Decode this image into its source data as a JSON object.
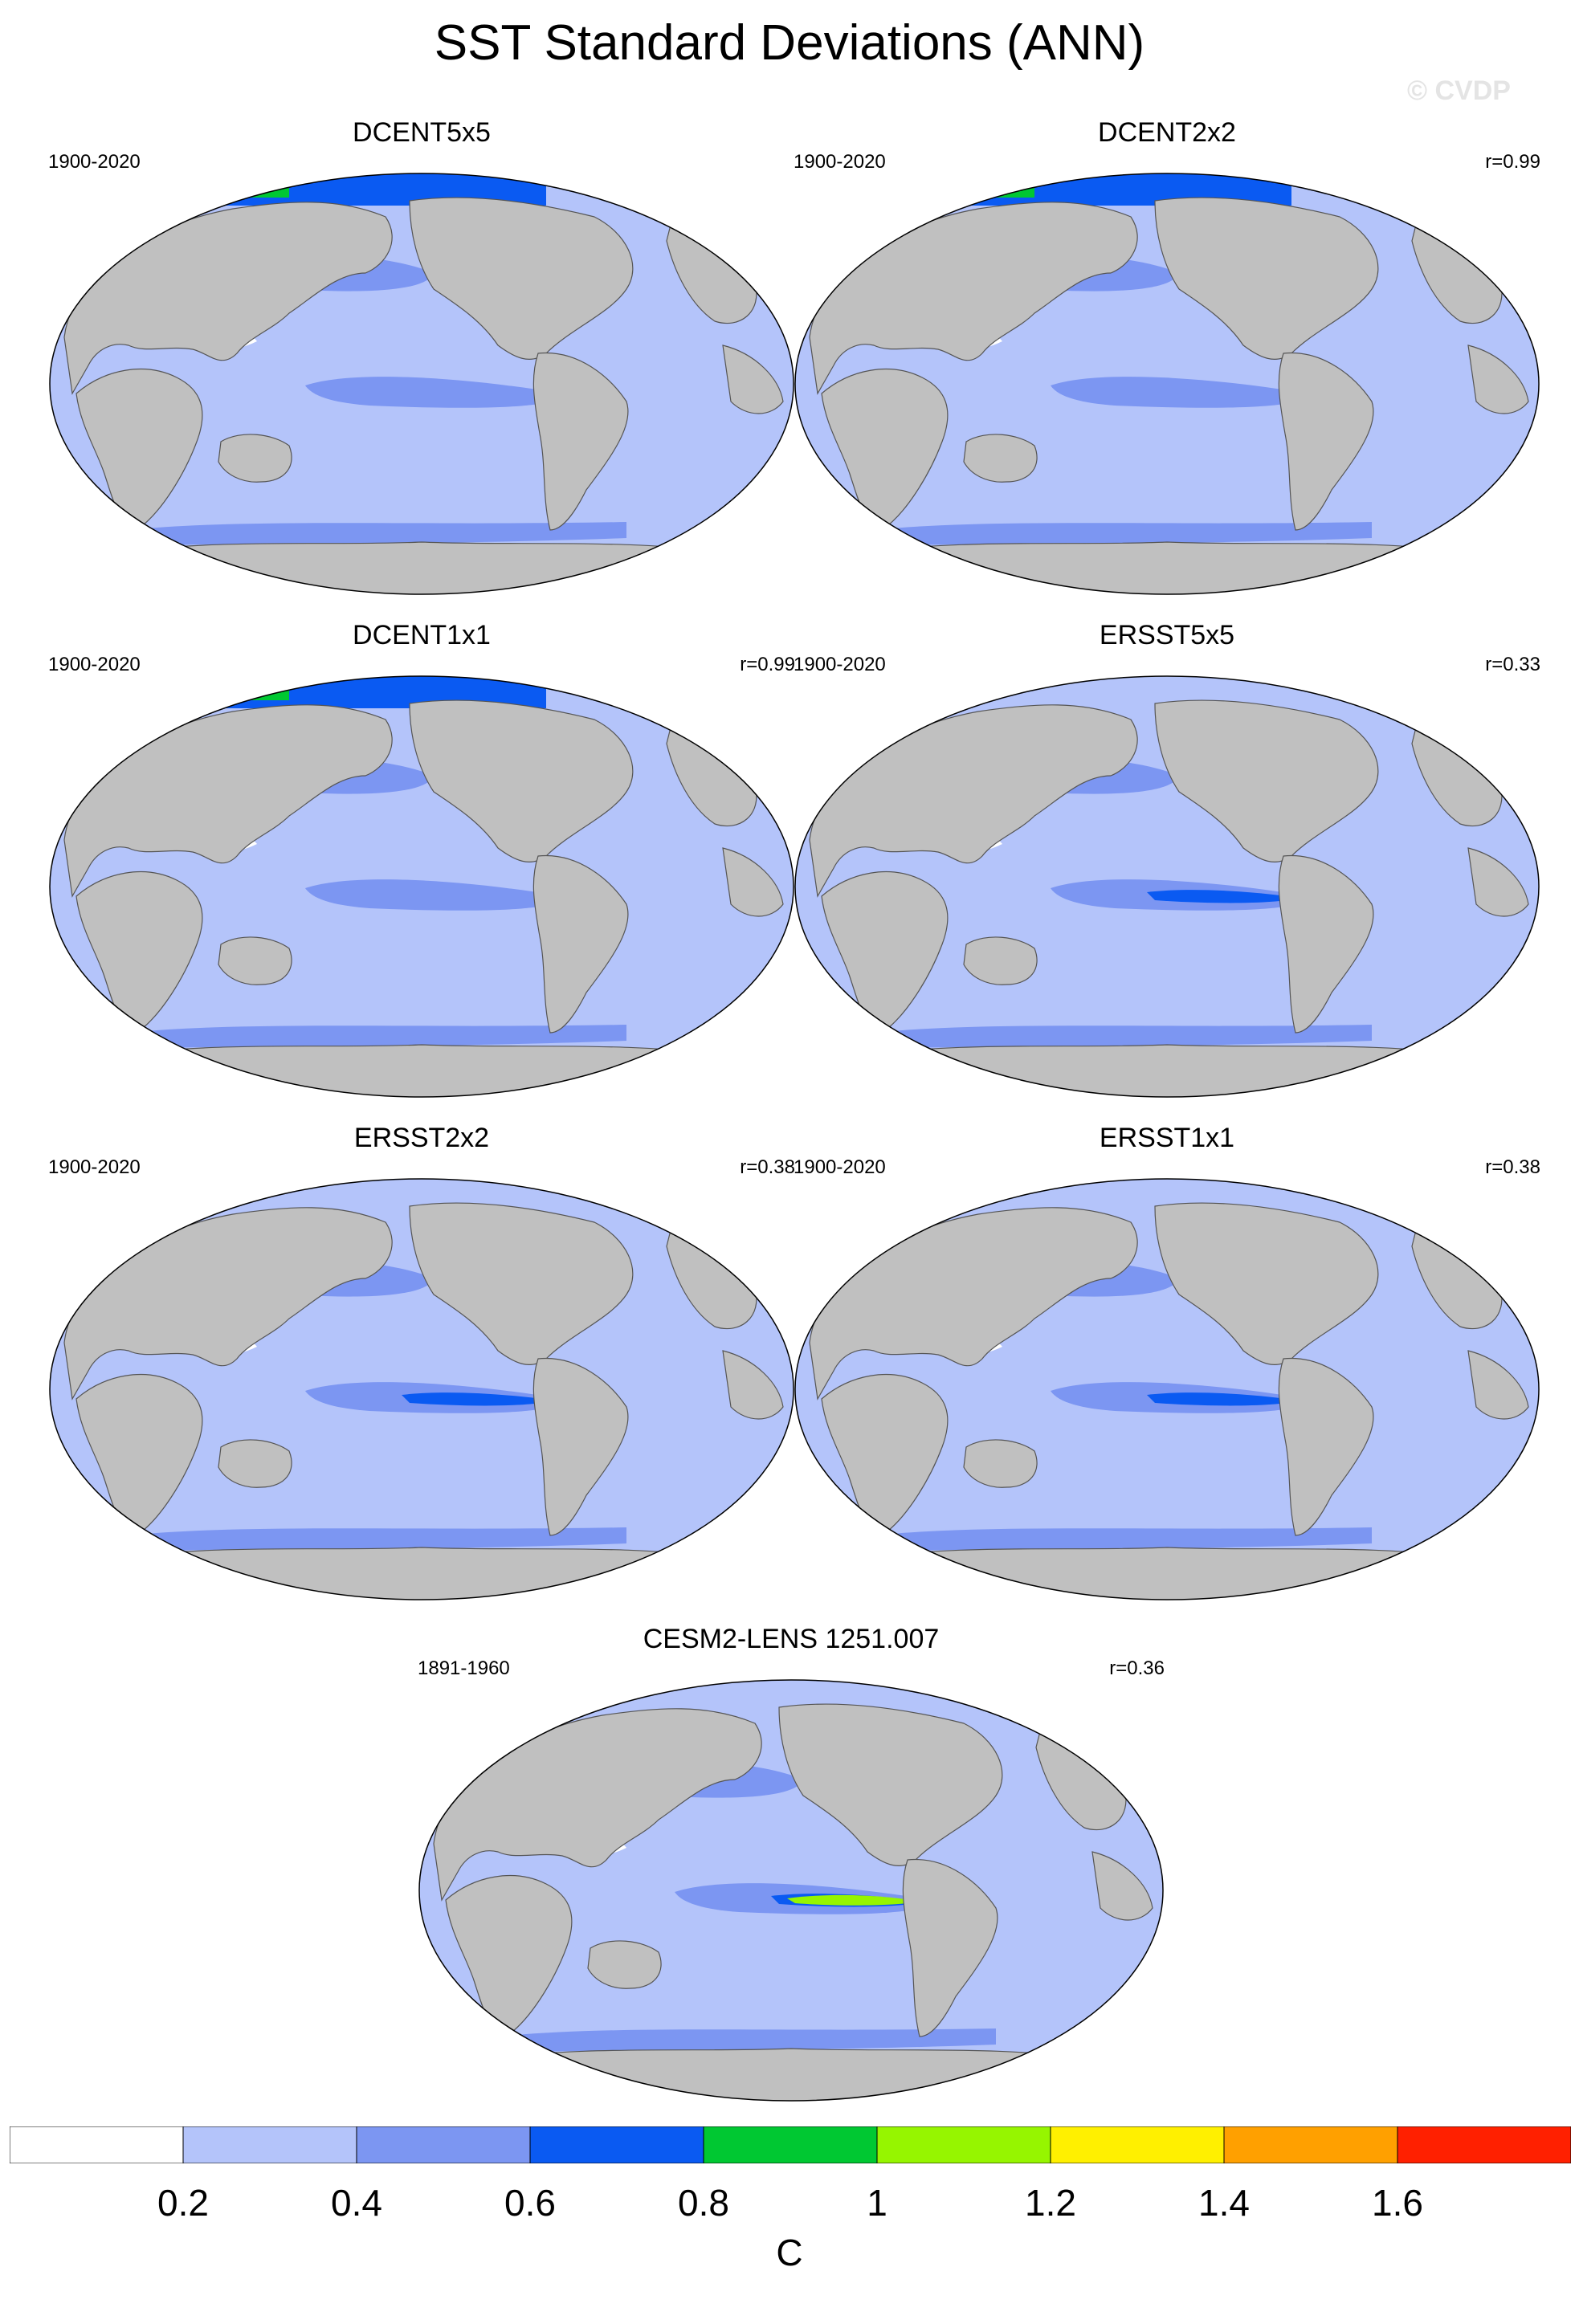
{
  "figure": {
    "title": "SST Standard Deviations (ANN)",
    "watermark": "© CVDP",
    "colors": {
      "land": "#c0c0c0",
      "ocean_background": "#b4c4fa",
      "contour_bins": [
        "#ffffff",
        "#b4c4fa",
        "#7c96f2",
        "#0a5af2",
        "#00c832",
        "#96f500",
        "#fff000",
        "#ffa000",
        "#ff2000"
      ]
    }
  },
  "panels": [
    {
      "title": "DCENT5x5",
      "period": "1900-2020",
      "corr": ""
    },
    {
      "title": "DCENT2x2",
      "period": "1900-2020",
      "corr": "r=0.99"
    },
    {
      "title": "DCENT1x1",
      "period": "1900-2020",
      "corr": "r=0.99"
    },
    {
      "title": "ERSST5x5",
      "period": "1900-2020",
      "corr": "r=0.33"
    },
    {
      "title": "ERSST2x2",
      "period": "1900-2020",
      "corr": "r=0.38"
    },
    {
      "title": "ERSST1x1",
      "period": "1900-2020",
      "corr": "r=0.38"
    },
    {
      "title": "CESM2-LENS 1251.007",
      "period": "1891-1960",
      "corr": "r=0.36"
    }
  ],
  "colorbar": {
    "labels": [
      "0.2",
      "0.4",
      "0.6",
      "0.8",
      "1",
      "1.2",
      "1.4",
      "1.6"
    ],
    "unit": "C"
  }
}
